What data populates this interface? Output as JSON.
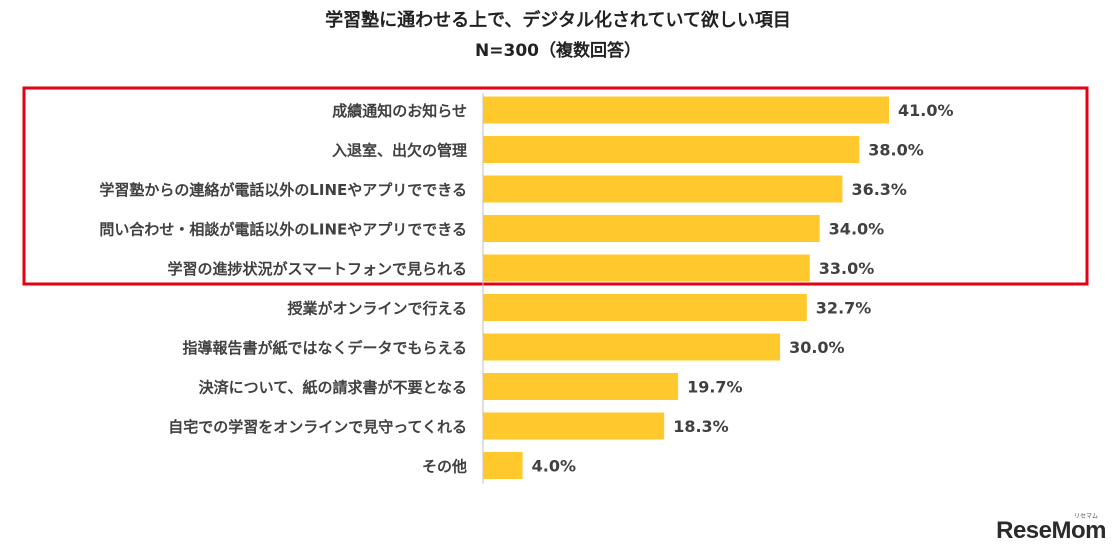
{
  "colors": {
    "bar": "#FFC82C",
    "highlight_box": "#E60012",
    "text": "#404040",
    "axis": "#BFBFBF"
  },
  "watermark": {
    "text": "ReseMom",
    "kana": "リセマム"
  },
  "chart_data": {
    "type": "bar",
    "orientation": "horizontal",
    "title": "学習塾に通わせる上で、デジタル化されていて欲しい項目",
    "subtitle": "N=300（複数回答）",
    "xlabel": "",
    "ylabel": "",
    "xlim": [
      0,
      50
    ],
    "grid": false,
    "value_suffix": "%",
    "categories": [
      "成績通知のお知らせ",
      "入退室、出欠の管理",
      "学習塾からの連絡が電話以外のLINEやアプリでできる",
      "問い合わせ・相談が電話以外のLINEやアプリでできる",
      "学習の進捗状況がスマートフォンで見られる",
      "授業がオンラインで行える",
      "指導報告書が紙ではなくデータでもらえる",
      "決済について、紙の請求書が不要となる",
      "自宅での学習をオンラインで見守ってくれる",
      "その他"
    ],
    "values": [
      41.0,
      38.0,
      36.3,
      34.0,
      33.0,
      32.7,
      30.0,
      19.7,
      18.3,
      4.0
    ],
    "value_labels": [
      "41.0%",
      "38.0%",
      "36.3%",
      "34.0%",
      "33.0%",
      "32.7%",
      "30.0%",
      "19.7%",
      "18.3%",
      "4.0%"
    ],
    "highlighted": [
      0,
      1,
      2,
      3,
      4
    ]
  }
}
